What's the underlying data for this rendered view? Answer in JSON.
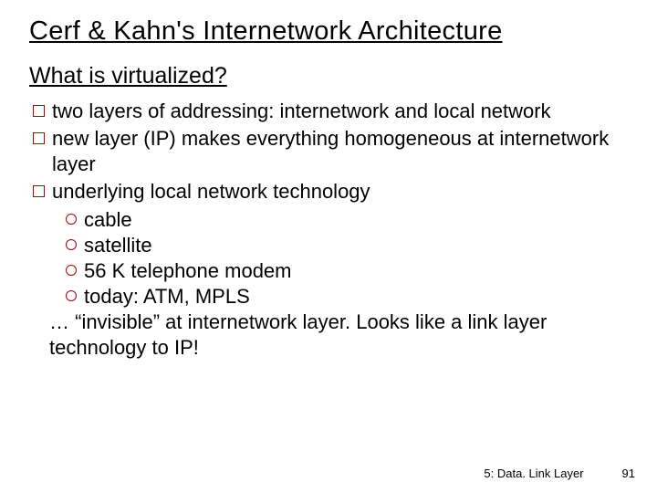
{
  "title": "Cerf & Kahn's Internetwork Architecture",
  "subtitle": "What is virtualized?",
  "bullets": [
    {
      "text": "two layers of addressing: internetwork and local network"
    },
    {
      "text": "new layer (IP) makes everything homogeneous at internetwork layer"
    },
    {
      "text": "underlying local network technology",
      "subs": [
        "cable",
        "satellite",
        "56 K telephone modem",
        "today: ATM, MPLS"
      ],
      "tail": "… “invisible” at internetwork layer. Looks like a link layer technology to IP!"
    }
  ],
  "footer": {
    "section": "5: Data. Link Layer",
    "page": "91"
  },
  "colors": {
    "bullet_border": "#b00000",
    "text": "#000000",
    "background": "#ffffff"
  }
}
